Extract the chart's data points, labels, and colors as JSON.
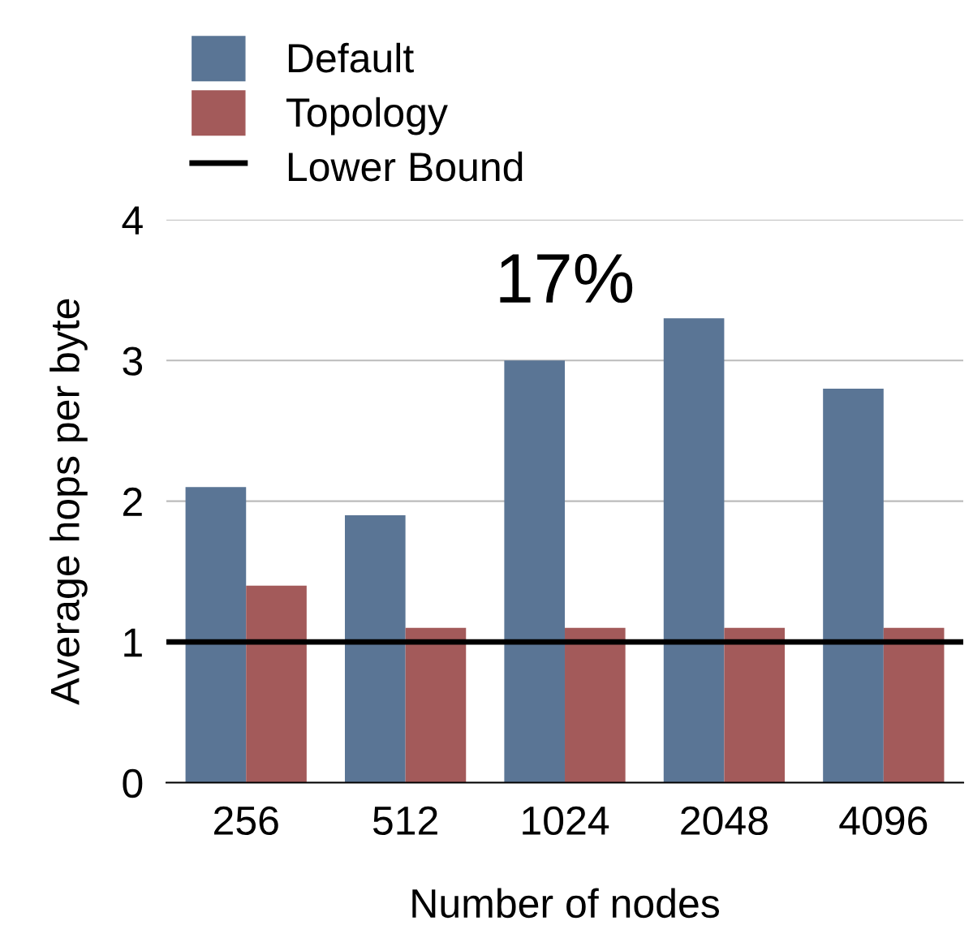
{
  "chart_data": {
    "type": "bar",
    "xlabel": "Number of nodes",
    "ylabel": "Average hops per byte",
    "categories": [
      "256",
      "512",
      "1024",
      "2048",
      "4096"
    ],
    "series": [
      {
        "name": "Default",
        "color": "#5a7595",
        "values": [
          2.1,
          1.9,
          3.0,
          3.3,
          2.8
        ]
      },
      {
        "name": "Topology",
        "color": "#a35a5a",
        "values": [
          1.4,
          1.1,
          1.1,
          1.1,
          1.1
        ]
      }
    ],
    "ref_lines": [
      {
        "axis": "y",
        "value": 1,
        "label": "Lower Bound",
        "color": "#000000",
        "line_style": "solid"
      }
    ],
    "annotations": [
      "17%"
    ],
    "ylim": [
      0,
      4
    ],
    "yticks": [
      0,
      1,
      2,
      3,
      4
    ],
    "grid": "y",
    "legend": "top left"
  }
}
